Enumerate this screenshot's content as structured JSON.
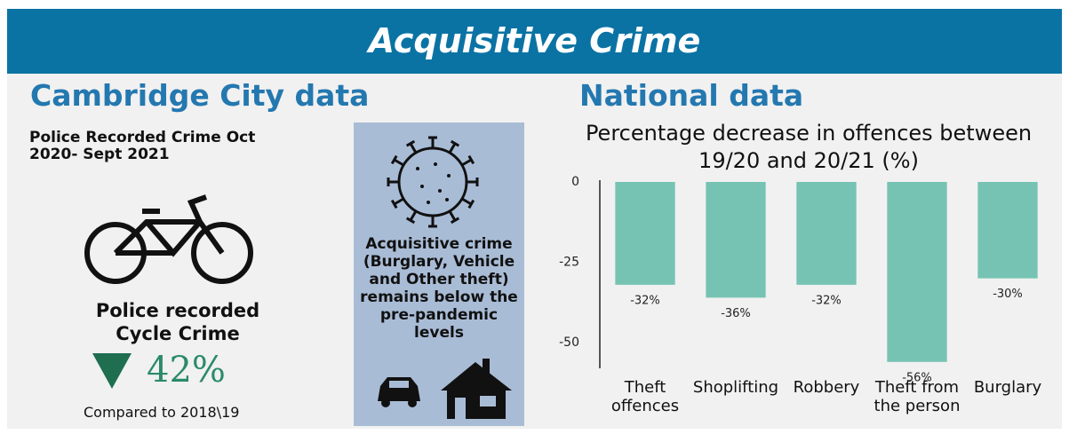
{
  "header": {
    "title": "Acquisitive Crime"
  },
  "cambridge": {
    "heading": "Cambridge City data",
    "subtitle": "Police Recorded Crime Oct 2020- Sept 2021",
    "cycle_label": "Police recorded Cycle Crime",
    "change": "42%",
    "comparison": "Compared to 2018\\19",
    "panel_text": "Acquisitive crime (Burglary, Vehicle and Other theft) remains below the pre-pandemic levels"
  },
  "national": {
    "heading": "National data"
  },
  "chart_data": {
    "type": "bar",
    "title": "Percentage decrease in offences between 19/20 and 20/21 (%)",
    "categories": [
      "Theft offences",
      "Shoplifting",
      "Robbery",
      "Theft from the person",
      "Burglary"
    ],
    "values": [
      -32,
      -36,
      -32,
      -56,
      -30
    ],
    "value_labels": [
      "-32%",
      "-36%",
      "-32%",
      "-56%",
      "-30%"
    ],
    "color": "#76c3b3",
    "ylim": [
      -58,
      0
    ],
    "yticks": [
      0,
      -25,
      -50
    ],
    "grid": false
  }
}
